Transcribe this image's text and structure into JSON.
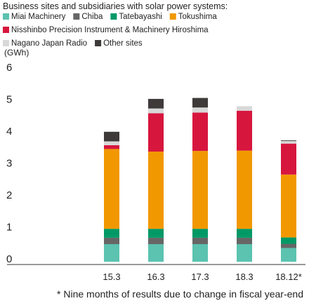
{
  "chart_data": {
    "type": "bar",
    "stacked": true,
    "title": "Business sites and subsidiaries with solar power systems:",
    "ylabel": "(GWh)",
    "xlabel": "",
    "categories": [
      "15.3",
      "16.3",
      "17.3",
      "18.3",
      "18.12*"
    ],
    "ylim": [
      0,
      6
    ],
    "yticks": [
      "0",
      "1",
      "2",
      "3",
      "4",
      "5",
      "6"
    ],
    "series": [
      {
        "name": "Miai Machinery",
        "color": "#5bc3b0",
        "values": [
          0.55,
          0.55,
          0.55,
          0.55,
          0.43
        ]
      },
      {
        "name": "Chiba",
        "color": "#666666",
        "values": [
          0.2,
          0.2,
          0.2,
          0.2,
          0.13
        ]
      },
      {
        "name": "Tatebayashi",
        "color": "#009966",
        "values": [
          0.28,
          0.28,
          0.28,
          0.28,
          0.2
        ]
      },
      {
        "name": "Tokushima",
        "color": "#f19800",
        "values": [
          2.5,
          2.42,
          2.44,
          2.45,
          1.97
        ]
      },
      {
        "name": "Nisshinbo Precision Instrument & Machinery Hiroshima",
        "color": "#d7163e",
        "values": [
          0.12,
          1.2,
          1.2,
          1.25,
          0.97
        ]
      },
      {
        "name": "Nagano Japan Radio",
        "color": "#d8d8d8",
        "values": [
          0.12,
          0.15,
          0.16,
          0.14,
          0.08
        ]
      },
      {
        "name": "Other sites",
        "color": "#3e3a39",
        "values": [
          0.3,
          0.3,
          0.3,
          0,
          0.02
        ]
      }
    ],
    "legend_placement": "top",
    "grid": false,
    "footnote": "* Nine months of results due to change in fiscal year-end"
  }
}
